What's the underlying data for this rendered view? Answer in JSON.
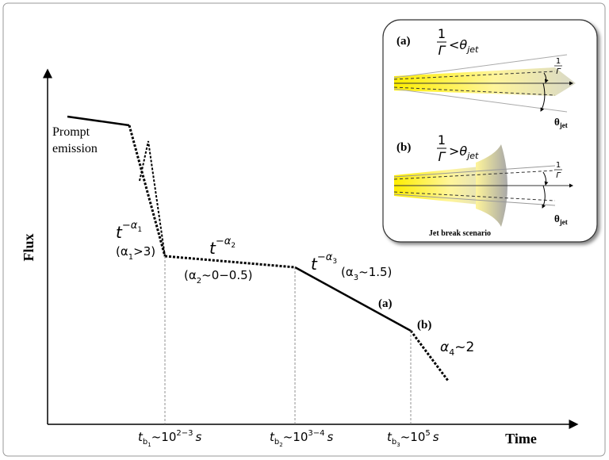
{
  "axes": {
    "y_label": "Flux",
    "x_label": "Time"
  },
  "prompt": [
    "Prompt",
    "emission"
  ],
  "decays": [
    {
      "t": "t",
      "exp": "−α",
      "exp_sub": "1",
      "cond_open": "(α",
      "cond_sub": "1",
      "cond_close": ">3)"
    },
    {
      "t": "t",
      "exp": "−α",
      "exp_sub": "2",
      "cond_open": "(α",
      "cond_sub": "2",
      "cond_close": "~0−0.5)"
    },
    {
      "t": "t",
      "exp": "−α",
      "exp_sub": "3",
      "cond_open": "(α",
      "cond_sub": "3",
      "cond_close": "~1.5)"
    }
  ],
  "late": {
    "a": "(a)",
    "b": "(b)",
    "alpha": "α",
    "alpha_sub": "4",
    "alpha_rest": "~2"
  },
  "breaks": [
    {
      "t": "t",
      "sub": "b",
      "subsub": "1",
      "mid": "~10",
      "sup": "2−3",
      "unit": "s"
    },
    {
      "t": "t",
      "sub": "b",
      "subsub": "2",
      "mid": "~10",
      "sup": "3−4",
      "unit": "s"
    },
    {
      "t": "t",
      "sub": "b",
      "subsub": "3",
      "mid": "~10",
      "sup": "5",
      "unit": "s"
    }
  ],
  "inset": {
    "panels": [
      {
        "tag": "(a)",
        "num": "1",
        "den": "Γ",
        "rel": "<θ",
        "rel_sub": "jet",
        "gamma_num": "1",
        "gamma_den": "Γ",
        "theta": "θ",
        "theta_sub": "jet"
      },
      {
        "tag": "(b)",
        "num": "1",
        "den": "Γ",
        "rel": ">θ",
        "rel_sub": "jet",
        "gamma_num": "1",
        "gamma_den": "Γ",
        "theta": "θ",
        "theta_sub": "jet"
      }
    ],
    "caption": "Jet break scenario"
  }
}
